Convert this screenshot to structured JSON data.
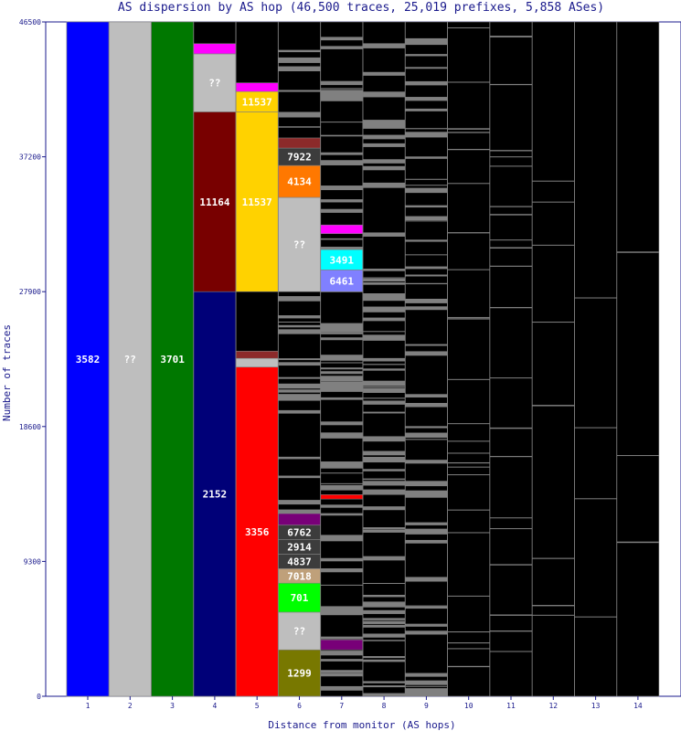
{
  "chart_data": {
    "type": "bar",
    "title": "AS dispersion by AS hop (46,500 traces, 25,019 prefixes, 5,858 ASes)",
    "xlabel": "Distance from monitor (AS hops)",
    "ylabel": "Number of traces",
    "ylim": [
      0,
      46500
    ],
    "yticks": [
      "0",
      "9300",
      "18600",
      "27900",
      "37200",
      "46500"
    ],
    "categories": [
      "1",
      "2",
      "3",
      "4",
      "5",
      "6",
      "7",
      "8",
      "9",
      "10",
      "11",
      "12",
      "13",
      "14"
    ],
    "grid": false,
    "legend": "none",
    "segments": [
      {
        "hop": 1,
        "y0": 0,
        "y1": 46500,
        "label": "3582",
        "color": "#0000ff"
      },
      {
        "hop": 2,
        "y0": 0,
        "y1": 46500,
        "label": "??",
        "color": "#bebebe"
      },
      {
        "hop": 3,
        "y0": 0,
        "y1": 46500,
        "label": "3701",
        "color": "#007800"
      },
      {
        "hop": 4,
        "y0": 0,
        "y1": 27900,
        "label": "2152",
        "color": "#000078"
      },
      {
        "hop": 4,
        "y0": 27900,
        "y1": 40300,
        "label": "11164",
        "color": "#780000"
      },
      {
        "hop": 4,
        "y0": 40300,
        "y1": 44300,
        "label": "??",
        "color": "#bebebe"
      },
      {
        "hop": 4,
        "y0": 44300,
        "y1": 45000,
        "label": "",
        "color": "#ff00ff"
      },
      {
        "hop": 5,
        "y0": 0,
        "y1": 22700,
        "label": "3356",
        "color": "#ff0000"
      },
      {
        "hop": 5,
        "y0": 22700,
        "y1": 23300,
        "label": "",
        "color": "#bebebe"
      },
      {
        "hop": 5,
        "y0": 23300,
        "y1": 23800,
        "label": "",
        "color": "#8c2a2a"
      },
      {
        "hop": 5,
        "y0": 27900,
        "y1": 40300,
        "label": "11537",
        "color": "#ffd200"
      },
      {
        "hop": 5,
        "y0": 40300,
        "y1": 41700,
        "label": "11537",
        "color": "#ffd200"
      },
      {
        "hop": 5,
        "y0": 41700,
        "y1": 42300,
        "label": "",
        "color": "#ff00ff"
      },
      {
        "hop": 6,
        "y0": 0,
        "y1": 3200,
        "label": "1299",
        "color": "#787800"
      },
      {
        "hop": 6,
        "y0": 3200,
        "y1": 5800,
        "label": "??",
        "color": "#bebebe"
      },
      {
        "hop": 6,
        "y0": 5800,
        "y1": 7800,
        "label": "701",
        "color": "#00ff00"
      },
      {
        "hop": 6,
        "y0": 7800,
        "y1": 8800,
        "label": "7018",
        "color": "#bfa07a"
      },
      {
        "hop": 6,
        "y0": 8800,
        "y1": 9800,
        "label": "4837",
        "color": "#3c3c3c"
      },
      {
        "hop": 6,
        "y0": 9800,
        "y1": 10800,
        "label": "2914",
        "color": "#3c3c3c"
      },
      {
        "hop": 6,
        "y0": 10800,
        "y1": 11800,
        "label": "6762",
        "color": "#3c3c3c"
      },
      {
        "hop": 6,
        "y0": 11800,
        "y1": 12600,
        "label": "",
        "color": "#780078"
      },
      {
        "hop": 6,
        "y0": 27900,
        "y1": 34400,
        "label": "??",
        "color": "#bebebe"
      },
      {
        "hop": 6,
        "y0": 34400,
        "y1": 36600,
        "label": "4134",
        "color": "#ff7800"
      },
      {
        "hop": 6,
        "y0": 36600,
        "y1": 37800,
        "label": "7922",
        "color": "#3c3c3c"
      },
      {
        "hop": 6,
        "y0": 37800,
        "y1": 38500,
        "label": "",
        "color": "#8c2a2a"
      },
      {
        "hop": 7,
        "y0": 3200,
        "y1": 3900,
        "label": "",
        "color": "#780078"
      },
      {
        "hop": 7,
        "y0": 13600,
        "y1": 13900,
        "label": "",
        "color": "#ff0000"
      },
      {
        "hop": 7,
        "y0": 27900,
        "y1": 29400,
        "label": "6461",
        "color": "#8080ff"
      },
      {
        "hop": 7,
        "y0": 29400,
        "y1": 30800,
        "label": "3491",
        "color": "#00ffff"
      },
      {
        "hop": 7,
        "y0": 31900,
        "y1": 32500,
        "label": "",
        "color": "#ff00ff"
      }
    ],
    "other_ases_color": "#808080",
    "unlabeled_remainder_color": "#000000"
  }
}
